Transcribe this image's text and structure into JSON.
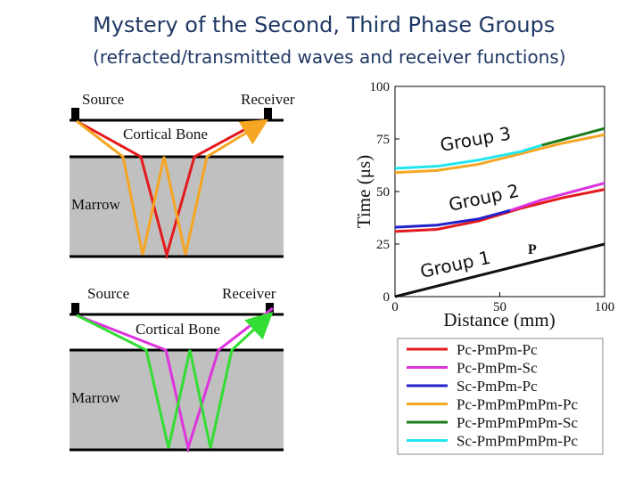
{
  "slide": {
    "title": "Mystery of the Second, Third Phase Groups",
    "subtitle": "(refracted/transmitted waves and receiver functions)"
  },
  "diagram_top": {
    "source": "Source",
    "receiver": "Receiver",
    "cortical": "Cortical Bone",
    "marrow": "Marrow"
  },
  "diagram_bottom": {
    "source": "Source",
    "receiver": "Receiver",
    "cortical": "Cortical Bone",
    "marrow": "Marrow"
  },
  "colors": {
    "red": "#e41a1c",
    "orange": "#f5a623",
    "green": "#33dd33",
    "magenta": "#dd33dd",
    "blue": "#2222cc",
    "darkgreen": "#1a7a1a",
    "cyan": "#22e5ee",
    "marrow_fill": "#c0c0c0"
  },
  "chart": {
    "ylabel": "Time (μs)",
    "xlabel": "Distance (mm)",
    "yticks": [
      "0",
      "25",
      "50",
      "75",
      "100"
    ],
    "xticks": [
      "0",
      "50",
      "100"
    ],
    "group_labels": [
      "Group 3",
      "Group 2",
      "Group 1"
    ],
    "p_label": "P",
    "legend": [
      {
        "label": "Pc-PmPm-Pc",
        "color": "#e41a1c"
      },
      {
        "label": "Pc-PmPm-Sc",
        "color": "#dd33dd"
      },
      {
        "label": "Sc-PmPm-Pc",
        "color": "#2222cc"
      },
      {
        "label": "Pc-PmPmPmPm-Pc",
        "color": "#f5a623"
      },
      {
        "label": "Pc-PmPmPmPm-Sc",
        "color": "#1a7a1a"
      },
      {
        "label": "Sc-PmPmPmPm-Pc",
        "color": "#22e5ee"
      }
    ]
  },
  "chart_data": {
    "type": "line",
    "xlabel": "Distance (mm)",
    "ylabel": "Time (μs)",
    "xlim": [
      0,
      100
    ],
    "ylim": [
      0,
      100
    ],
    "series": [
      {
        "name": "P",
        "x": [
          0,
          100
        ],
        "y": [
          0,
          25
        ]
      },
      {
        "name": "Pc-PmPm-Pc",
        "x": [
          0,
          20,
          40,
          60,
          80,
          100
        ],
        "y": [
          31,
          32,
          36,
          42,
          47,
          51
        ]
      },
      {
        "name": "Pc-PmPm-Sc",
        "x": [
          55,
          70,
          85,
          100
        ],
        "y": [
          41,
          46,
          50,
          54
        ]
      },
      {
        "name": "Sc-PmPm-Pc",
        "x": [
          0,
          20,
          40,
          55
        ],
        "y": [
          33,
          34,
          37,
          41
        ]
      },
      {
        "name": "Pc-PmPmPmPm-Pc",
        "x": [
          0,
          20,
          40,
          60,
          80,
          100
        ],
        "y": [
          59,
          60,
          63,
          68,
          73,
          77
        ]
      },
      {
        "name": "Pc-PmPmPmPm-Sc",
        "x": [
          70,
          85,
          100
        ],
        "y": [
          72,
          76,
          80
        ]
      },
      {
        "name": "Sc-PmPmPmPm-Pc",
        "x": [
          0,
          20,
          40,
          60,
          70
        ],
        "y": [
          61,
          62,
          65,
          69,
          72
        ]
      }
    ]
  }
}
